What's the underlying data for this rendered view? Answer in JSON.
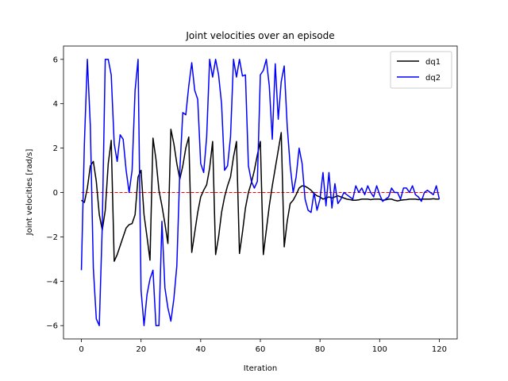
{
  "chart_data": {
    "type": "line",
    "title": "Joint velocities over an episode",
    "xlabel": "Iteration",
    "ylabel": "Joint velocities [rad/s]",
    "xlim": [
      -6,
      126
    ],
    "ylim": [
      -6.6,
      6.6
    ],
    "xticks": [
      0,
      20,
      40,
      60,
      80,
      100,
      120
    ],
    "yticks": [
      -6,
      -4,
      -2,
      0,
      2,
      4,
      6
    ],
    "legend": {
      "placement": "top-right"
    },
    "reference_line": {
      "y": 0,
      "x_range": [
        0,
        120
      ],
      "color": "#ff0000",
      "style": "dashed"
    },
    "series": [
      {
        "name": "dq1",
        "color": "#000000",
        "x": [
          0,
          1,
          2,
          3,
          4,
          5,
          6,
          7,
          8,
          9,
          10,
          11,
          12,
          13,
          14,
          15,
          16,
          17,
          18,
          19,
          20,
          21,
          22,
          23,
          24,
          25,
          26,
          27,
          28,
          29,
          30,
          31,
          32,
          33,
          34,
          35,
          36,
          37,
          38,
          39,
          40,
          41,
          42,
          43,
          44,
          45,
          46,
          47,
          48,
          49,
          50,
          51,
          52,
          53,
          54,
          55,
          56,
          57,
          58,
          59,
          60,
          61,
          62,
          63,
          64,
          65,
          66,
          67,
          68,
          69,
          70,
          71,
          72,
          73,
          74,
          75,
          76,
          77,
          78,
          79,
          80,
          81,
          82,
          83,
          84,
          85,
          86,
          87,
          88,
          89,
          90,
          91,
          92,
          93,
          94,
          95,
          96,
          97,
          98,
          99,
          100,
          101,
          102,
          103,
          104,
          105,
          106,
          107,
          108,
          109,
          110,
          111,
          112,
          113,
          114,
          115,
          116,
          117,
          118,
          119,
          120
        ],
        "values": [
          -0.35,
          -0.45,
          0.2,
          1.2,
          1.4,
          0.5,
          -1.0,
          -1.7,
          -0.8,
          1.3,
          2.35,
          -3.1,
          -2.8,
          -2.4,
          -2.0,
          -1.6,
          -1.45,
          -1.4,
          -1.0,
          0.7,
          1.0,
          -1.0,
          -2.0,
          -3.05,
          2.45,
          1.5,
          0.1,
          -0.6,
          -1.4,
          -2.3,
          2.85,
          2.2,
          1.3,
          0.6,
          1.2,
          2.0,
          2.5,
          -2.7,
          -1.8,
          -0.9,
          -0.2,
          0.1,
          0.35,
          1.1,
          2.3,
          -2.8,
          -2.0,
          -0.9,
          -0.2,
          0.3,
          0.7,
          1.6,
          2.3,
          -2.75,
          -1.8,
          -0.7,
          0.0,
          0.45,
          1.0,
          1.7,
          2.3,
          -2.8,
          -1.7,
          -0.6,
          0.3,
          1.1,
          1.9,
          2.7,
          -2.45,
          -1.3,
          -0.5,
          -0.35,
          -0.1,
          0.2,
          0.3,
          0.28,
          0.2,
          0.1,
          -0.05,
          -0.15,
          -0.2,
          -0.3,
          -0.25,
          -0.2,
          -0.25,
          -0.2,
          -0.15,
          -0.2,
          -0.25,
          -0.3,
          -0.32,
          -0.35,
          -0.35,
          -0.33,
          -0.3,
          -0.3,
          -0.3,
          -0.32,
          -0.3,
          -0.3,
          -0.3,
          -0.35,
          -0.33,
          -0.3,
          -0.3,
          -0.35,
          -0.38,
          -0.35,
          -0.33,
          -0.32,
          -0.3,
          -0.3,
          -0.3,
          -0.32,
          -0.3,
          -0.3,
          -0.3,
          -0.3,
          -0.28,
          -0.3,
          -0.3
        ]
      },
      {
        "name": "dq2",
        "color": "#0000ff",
        "x": [
          0,
          1,
          2,
          3,
          4,
          5,
          6,
          7,
          8,
          9,
          10,
          11,
          12,
          13,
          14,
          15,
          16,
          17,
          18,
          19,
          20,
          21,
          22,
          23,
          24,
          25,
          26,
          27,
          28,
          29,
          30,
          31,
          32,
          33,
          34,
          35,
          36,
          37,
          38,
          39,
          40,
          41,
          42,
          43,
          44,
          45,
          46,
          47,
          48,
          49,
          50,
          51,
          52,
          53,
          54,
          55,
          56,
          57,
          58,
          59,
          60,
          61,
          62,
          63,
          64,
          65,
          66,
          67,
          68,
          69,
          70,
          71,
          72,
          73,
          74,
          75,
          76,
          77,
          78,
          79,
          80,
          81,
          82,
          83,
          84,
          85,
          86,
          87,
          88,
          89,
          90,
          91,
          92,
          93,
          94,
          95,
          96,
          97,
          98,
          99,
          100,
          101,
          102,
          103,
          104,
          105,
          106,
          107,
          108,
          109,
          110,
          111,
          112,
          113,
          114,
          115,
          116,
          117,
          118,
          119,
          120
        ],
        "values": [
          -3.5,
          2.2,
          6.0,
          3.0,
          -3.4,
          -5.7,
          -6.0,
          -1.5,
          6.0,
          6.0,
          5.3,
          2.2,
          1.4,
          2.6,
          2.4,
          1.0,
          0.0,
          1.0,
          4.6,
          6.0,
          -4.4,
          -6.0,
          -4.6,
          -3.9,
          -3.5,
          -6.0,
          -6.0,
          -1.3,
          -4.3,
          -5.2,
          -5.8,
          -4.8,
          -3.3,
          1.0,
          3.6,
          3.5,
          4.8,
          5.85,
          4.6,
          4.2,
          1.3,
          0.9,
          2.5,
          6.0,
          5.2,
          6.0,
          5.3,
          4.0,
          1.0,
          1.2,
          2.5,
          6.0,
          5.2,
          6.0,
          5.25,
          5.3,
          1.2,
          0.5,
          0.2,
          0.5,
          5.3,
          5.5,
          6.0,
          4.8,
          2.4,
          5.8,
          3.3,
          5.0,
          5.7,
          3.0,
          1.2,
          0.0,
          0.7,
          2.0,
          1.3,
          -0.3,
          -0.8,
          -0.9,
          0.0,
          -0.8,
          -0.3,
          0.9,
          -0.6,
          0.9,
          -0.7,
          0.4,
          -0.5,
          -0.3,
          0.0,
          -0.1,
          -0.2,
          -0.3,
          0.3,
          0.0,
          0.2,
          -0.1,
          0.3,
          0.0,
          -0.2,
          0.3,
          -0.1,
          -0.4,
          -0.3,
          -0.2,
          0.2,
          0.0,
          0.0,
          -0.3,
          0.2,
          0.2,
          0.0,
          0.3,
          -0.1,
          -0.2,
          -0.4,
          0.0,
          0.1,
          0.0,
          -0.1,
          0.3,
          -0.3
        ]
      }
    ]
  }
}
